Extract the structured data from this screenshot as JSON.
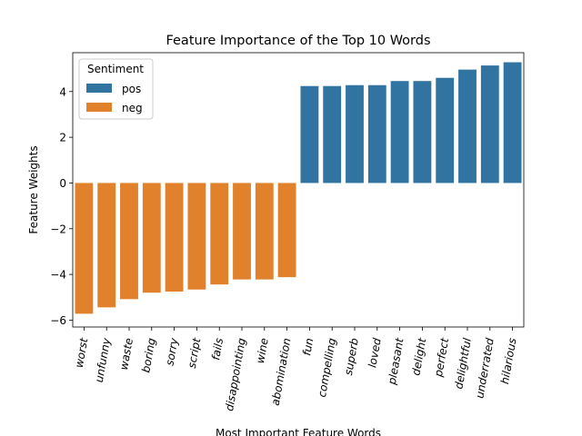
{
  "chart_data": {
    "type": "bar",
    "title": "Feature Importance of the Top 10 Words",
    "xlabel": "Most Important Feature Words",
    "ylabel": "Feature Weights",
    "ylim": [
      -6.3,
      5.7
    ],
    "yticks": [
      -6,
      -4,
      -2,
      0,
      2,
      4
    ],
    "ytick_labels": [
      "−6",
      "−4",
      "−2",
      "0",
      "2",
      "4"
    ],
    "grid": false,
    "legend": {
      "title": "Sentiment",
      "placement": "top-left",
      "entries": [
        {
          "name": "pos",
          "color": "#3274a1"
        },
        {
          "name": "neg",
          "color": "#e1812c"
        }
      ]
    },
    "categories": [
      "worst",
      "unfunny",
      "waste",
      "boring",
      "sorry",
      "script",
      "fails",
      "disappointing",
      "wine",
      "abomination",
      "fun",
      "compelling",
      "superb",
      "loved",
      "pleasant",
      "delight",
      "perfect",
      "delightful",
      "underrated",
      "hilarious"
    ],
    "values": [
      -5.72,
      -5.44,
      -5.08,
      -4.8,
      -4.75,
      -4.66,
      -4.44,
      -4.22,
      -4.22,
      -4.12,
      4.24,
      4.24,
      4.28,
      4.28,
      4.46,
      4.46,
      4.6,
      4.96,
      5.14,
      5.28
    ],
    "sentiment": [
      "neg",
      "neg",
      "neg",
      "neg",
      "neg",
      "neg",
      "neg",
      "neg",
      "neg",
      "neg",
      "pos",
      "pos",
      "pos",
      "pos",
      "pos",
      "pos",
      "pos",
      "pos",
      "pos",
      "pos"
    ]
  }
}
